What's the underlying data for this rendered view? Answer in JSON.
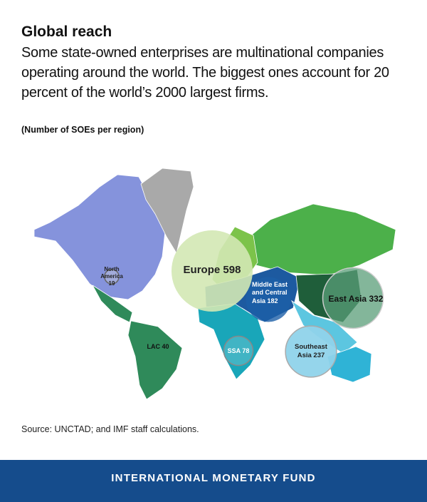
{
  "header": {
    "title": "Global reach",
    "subtitle": "Some state-owned enterprises are multinational companies operating around the world. The biggest ones account for 20 percent of the world’s 2000 largest firms.",
    "note": "(Number of SOEs per region)"
  },
  "regions": [
    {
      "name": "North America",
      "value": 19,
      "color": "#b9bfd8"
    },
    {
      "name": "Europe",
      "value": 598,
      "color": "#d3e8b4"
    },
    {
      "name": "Middle East and Central Asia",
      "value": 182,
      "color": "#1d5fa8"
    },
    {
      "name": "East Asia",
      "value": 332,
      "color": "#5a9e78"
    },
    {
      "name": "Southeast Asia",
      "value": 237,
      "color": "#8fd3ea"
    },
    {
      "name": "SSA",
      "value": 78,
      "color": "#4fb8c8"
    },
    {
      "name": "LAC",
      "value": 40,
      "color": "#2f8a5a"
    }
  ],
  "source": "Source: UNCTAD; and IMF staff calculations.",
  "footer": "INTERNATIONAL MONETARY FUND"
}
